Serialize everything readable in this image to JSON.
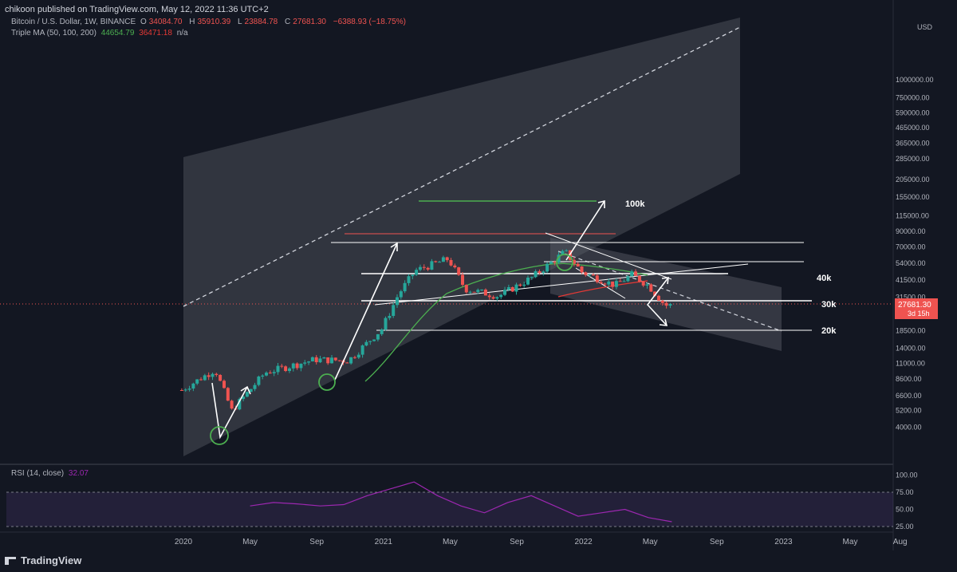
{
  "header": {
    "published": "chikoon published on TradingView.com, May 12, 2022 11:36 UTC+2",
    "symbol": "Bitcoin / U.S. Dollar, 1W, BINANCE",
    "open_label": "O",
    "open": "34084.70",
    "high_label": "H",
    "high": "35910.39",
    "low_label": "L",
    "low": "23884.78",
    "close_label": "C",
    "close": "27681.30",
    "change": "−6388.93 (−18.75%)",
    "ma_label": "Triple MA (50, 100, 200)",
    "ma50": "44654.79",
    "ma100": "36471.18",
    "ma200": "n/a",
    "rsi_label": "RSI (14, close)",
    "rsi_value": "32.07"
  },
  "price_axis": {
    "currency": "USD",
    "ticks": [
      "1000000.00",
      "750000.00",
      "590000.00",
      "465000.00",
      "365000.00",
      "285000.00",
      "205000.00",
      "155000.00",
      "115000.00",
      "90000.00",
      "70000.00",
      "54000.00",
      "41500.00",
      "31500.00",
      "18500.00",
      "14000.00",
      "11000.00",
      "8600.00",
      "6600.00",
      "5200.00",
      "4000.00"
    ],
    "ticks_near_price": [
      "24000.00"
    ],
    "last_price": "27681.30",
    "countdown": "3d 15h"
  },
  "rsi_axis": {
    "ticks": [
      "100.00",
      "75.00",
      "50.00",
      "25.00"
    ]
  },
  "time_axis": {
    "ticks": [
      "2020",
      "May",
      "Sep",
      "2021",
      "May",
      "Sep",
      "2022",
      "May",
      "Sep",
      "2023",
      "May",
      "Aug"
    ]
  },
  "annotations": {
    "t100k": "100k",
    "t40k": "40k",
    "t30k": "30k",
    "t20k": "20k"
  },
  "branding": {
    "logo_text": "TradingView"
  },
  "colors": {
    "bg": "#131722",
    "up": "#26a69a",
    "down": "#ef5350",
    "ma50": "#4caf50",
    "ma100": "#e53935",
    "rsi": "#9c27b0",
    "target_line": "#4caf50",
    "resistance_line": "#ef5350"
  },
  "chart_data": {
    "type": "candlestick",
    "title": "Bitcoin / U.S. Dollar, 1W, BINANCE",
    "y_scale": "log",
    "ylim": [
      4000,
      1000000
    ],
    "x_range": [
      "2019-12",
      "2023-08"
    ],
    "levels": [
      100000,
      40000,
      30000,
      20000
    ],
    "series_approx": {
      "dates": [
        "2019-12",
        "2020-02",
        "2020-03",
        "2020-05",
        "2020-08",
        "2020-10",
        "2020-12",
        "2021-01",
        "2021-02",
        "2021-04",
        "2021-05",
        "2021-07",
        "2021-09",
        "2021-11",
        "2021-12",
        "2022-02",
        "2022-03",
        "2022-04",
        "2022-05"
      ],
      "close": [
        7200,
        10000,
        5200,
        9500,
        11700,
        11500,
        19000,
        33000,
        48000,
        58000,
        36000,
        32000,
        43000,
        65000,
        47000,
        38000,
        45000,
        38000,
        27681
      ]
    },
    "rsi_series_approx": [
      55,
      60,
      58,
      55,
      57,
      70,
      80,
      90,
      70,
      55,
      45,
      60,
      70,
      55,
      40,
      45,
      50,
      38,
      32
    ]
  }
}
